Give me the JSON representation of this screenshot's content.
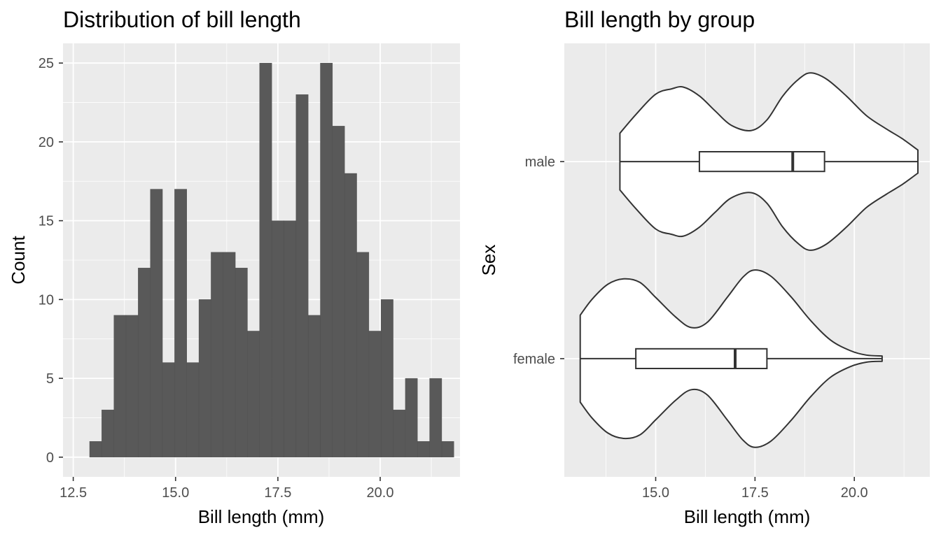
{
  "colors": {
    "panel_bg": "#ebebeb",
    "grid": "#ffffff",
    "bar_fill": "#595959",
    "bar_stroke": "#4d4d4d",
    "violin_fill": "#ffffff",
    "outline": "#333333",
    "tick": "#333333"
  },
  "chart_data": [
    {
      "type": "bar",
      "subtype": "histogram",
      "title": "Distribution of bill length",
      "xlabel": "Bill length (mm)",
      "ylabel": "Count",
      "xlim": [
        12.25,
        21.95
      ],
      "ylim": [
        -1.25,
        26.25
      ],
      "x_ticks": [
        12.5,
        15.0,
        17.5,
        20.0
      ],
      "x_tick_labels": [
        "12.5",
        "15.0",
        "17.5",
        "20.0"
      ],
      "y_ticks": [
        0,
        5,
        10,
        15,
        20,
        25
      ],
      "y_tick_labels": [
        "0",
        "5",
        "10",
        "15",
        "20",
        "25"
      ],
      "bin_start": 12.9,
      "bin_width": 0.2967,
      "counts": [
        1,
        3,
        9,
        9,
        12,
        17,
        6,
        17,
        6,
        10,
        13,
        13,
        12,
        8,
        25,
        15,
        15,
        23,
        9,
        25,
        21,
        18,
        13,
        8,
        10,
        3,
        5,
        1,
        5,
        1
      ],
      "grid": true
    },
    {
      "type": "violin",
      "title": "Bill length by group",
      "xlabel": "Bill length (mm)",
      "ylabel": "Sex",
      "xlim": [
        12.7,
        21.9
      ],
      "x_ticks": [
        15.0,
        17.5,
        20.0
      ],
      "x_tick_labels": [
        "15.0",
        "17.5",
        "20.0"
      ],
      "categories": [
        "male",
        "female"
      ],
      "grid": true,
      "groups": [
        {
          "name": "male",
          "min": 14.1,
          "q1": 16.1,
          "median": 18.45,
          "q3": 19.25,
          "max": 21.6,
          "density": [
            [
              14.1,
              0.32
            ],
            [
              14.5,
              0.53
            ],
            [
              15.0,
              0.76
            ],
            [
              15.4,
              0.82
            ],
            [
              15.7,
              0.84
            ],
            [
              16.1,
              0.74
            ],
            [
              16.5,
              0.57
            ],
            [
              16.9,
              0.41
            ],
            [
              17.4,
              0.35
            ],
            [
              17.8,
              0.47
            ],
            [
              18.2,
              0.74
            ],
            [
              18.6,
              0.93
            ],
            [
              18.9,
              1.0
            ],
            [
              19.3,
              0.93
            ],
            [
              19.8,
              0.74
            ],
            [
              20.3,
              0.52
            ],
            [
              20.8,
              0.37
            ],
            [
              21.2,
              0.26
            ],
            [
              21.6,
              0.13
            ]
          ]
        },
        {
          "name": "female",
          "min": 13.1,
          "q1": 14.5,
          "median": 17.0,
          "q3": 17.8,
          "max": 20.7,
          "density": [
            [
              13.1,
              0.49
            ],
            [
              13.4,
              0.67
            ],
            [
              13.8,
              0.84
            ],
            [
              14.2,
              0.9
            ],
            [
              14.6,
              0.86
            ],
            [
              15.0,
              0.69
            ],
            [
              15.5,
              0.47
            ],
            [
              15.9,
              0.35
            ],
            [
              16.3,
              0.41
            ],
            [
              16.8,
              0.69
            ],
            [
              17.2,
              0.92
            ],
            [
              17.5,
              1.0
            ],
            [
              17.9,
              0.93
            ],
            [
              18.4,
              0.7
            ],
            [
              18.9,
              0.43
            ],
            [
              19.4,
              0.21
            ],
            [
              19.9,
              0.09
            ],
            [
              20.3,
              0.04
            ],
            [
              20.7,
              0.03
            ]
          ]
        }
      ]
    }
  ]
}
